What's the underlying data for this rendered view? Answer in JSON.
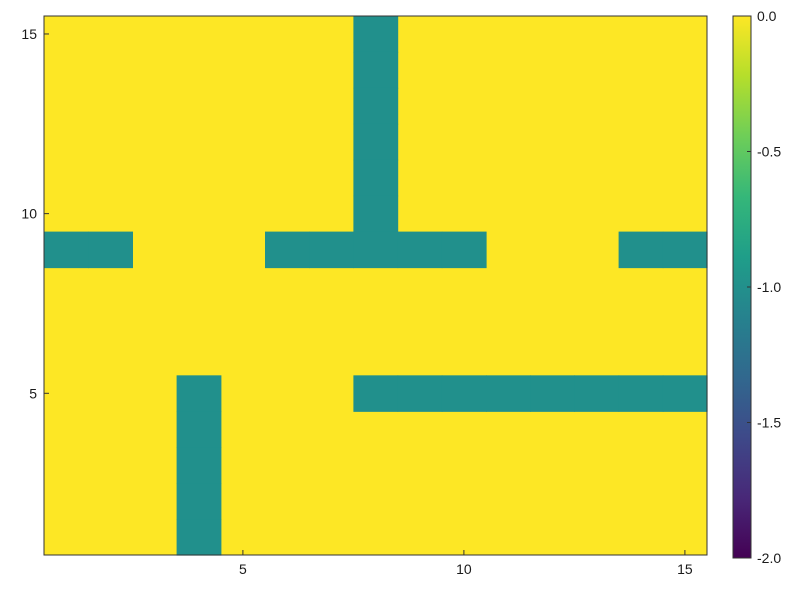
{
  "chart_data": {
    "type": "heatmap",
    "title": "",
    "xlabel": "",
    "ylabel": "",
    "xlim": [
      0.5,
      15.5
    ],
    "ylim": [
      0.5,
      15.5
    ],
    "x_ticks": [
      5,
      10,
      15
    ],
    "y_ticks": [
      5,
      10,
      15
    ],
    "x_tick_labels": [
      "5",
      "10",
      "15"
    ],
    "y_tick_labels": [
      "5",
      "10",
      "15"
    ],
    "background_value": 0.0,
    "background_color": "#fde725",
    "cell_color": "#21908c",
    "cells_value": -1.0,
    "cells": [
      [
        8,
        15
      ],
      [
        8,
        14
      ],
      [
        8,
        13
      ],
      [
        8,
        12
      ],
      [
        8,
        11
      ],
      [
        8,
        10
      ],
      [
        1,
        9
      ],
      [
        2,
        9
      ],
      [
        6,
        9
      ],
      [
        7,
        9
      ],
      [
        8,
        9
      ],
      [
        9,
        9
      ],
      [
        10,
        9
      ],
      [
        14,
        9
      ],
      [
        15,
        9
      ],
      [
        4,
        5
      ],
      [
        4,
        4
      ],
      [
        4,
        3
      ],
      [
        4,
        2
      ],
      [
        4,
        1
      ],
      [
        8,
        5
      ],
      [
        9,
        5
      ],
      [
        10,
        5
      ],
      [
        11,
        5
      ],
      [
        12,
        5
      ],
      [
        13,
        5
      ],
      [
        14,
        5
      ],
      [
        15,
        5
      ]
    ],
    "colorbar": {
      "range": [
        -2.0,
        0.0
      ],
      "ticks": [
        0.0,
        -0.5,
        -1.0,
        -1.5,
        -2.0
      ],
      "tick_labels": [
        "0.0",
        "-0.5",
        "-1.0",
        "-1.5",
        "-2.0"
      ],
      "stops": [
        "#440154",
        "#482878",
        "#3e4989",
        "#31688e",
        "#26828e",
        "#1f9e89",
        "#35b779",
        "#6ece58",
        "#b5de2b",
        "#fde725"
      ]
    }
  }
}
